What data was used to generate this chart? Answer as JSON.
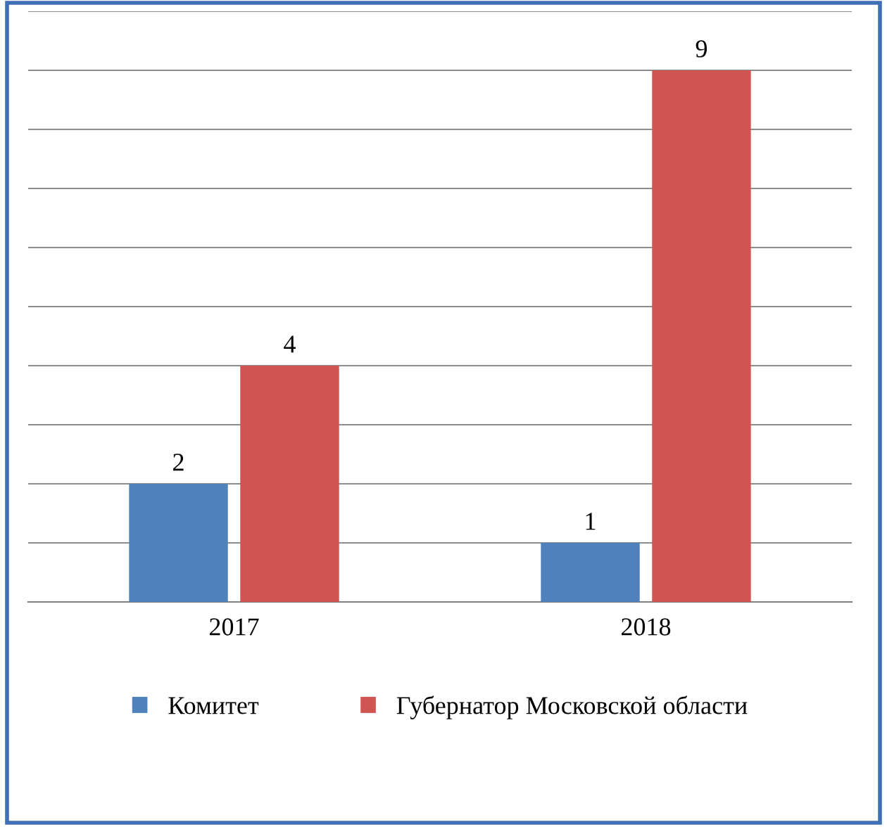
{
  "chart_data": {
    "type": "bar",
    "categories": [
      "2017",
      "2018"
    ],
    "series": [
      {
        "name": "Комитет",
        "color": "#4f81bd",
        "values": [
          2,
          1
        ]
      },
      {
        "name": "Губернатор Московской области",
        "color": "#cf5552",
        "values": [
          4,
          9
        ]
      }
    ],
    "ylim": [
      0,
      10
    ],
    "yticks": [
      {
        "value": 0,
        "label": null
      },
      {
        "value": 1,
        "label": null
      },
      {
        "value": 2,
        "label": null
      },
      {
        "value": 3,
        "label": null
      },
      {
        "value": 4,
        "label": null
      },
      {
        "value": 5,
        "label": null
      },
      {
        "value": 6,
        "label": null
      },
      {
        "value": 7,
        "label": null
      },
      {
        "value": 8,
        "label": null
      },
      {
        "value": 9,
        "label": null
      },
      {
        "value": 10,
        "label": null
      }
    ],
    "grid": "y",
    "legend": "bottom",
    "data_labels": true,
    "tick_labels": "x"
  }
}
